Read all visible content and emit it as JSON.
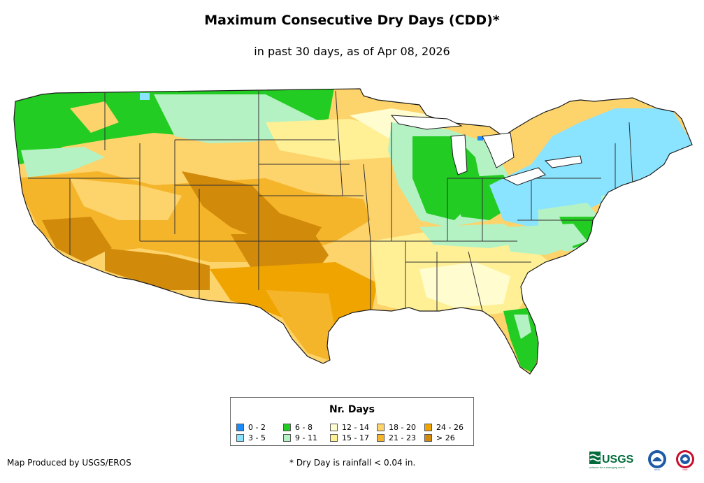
{
  "title": "Maximum Consecutive Dry Days (CDD)*",
  "subtitle": "in past 30 days, as of Apr 08, 2026",
  "legend": {
    "title": "Nr. Days",
    "items": [
      {
        "label": "0 - 2",
        "color": "#1a8cff"
      },
      {
        "label": "3 - 5",
        "color": "#8ae4ff"
      },
      {
        "label": "6 - 8",
        "color": "#22cc22"
      },
      {
        "label": "9 - 11",
        "color": "#b4f2c4"
      },
      {
        "label": "12 - 14",
        "color": "#fffccf"
      },
      {
        "label": "15 - 17",
        "color": "#fff096"
      },
      {
        "label": "18 - 20",
        "color": "#fdd36b"
      },
      {
        "label": "21 - 23",
        "color": "#f5b52a"
      },
      {
        "label": "24 - 26",
        "color": "#f0a400"
      },
      {
        "label": "> 26",
        "color": "#d28a0a"
      }
    ]
  },
  "credit": "Map Produced by USGS/EROS",
  "footnote": "* Dry Day is rainfall < 0.04 in.",
  "logos": {
    "usgs_text": "USGS",
    "usgs_tagline": "science for a changing world",
    "noaa_text": "NOAA",
    "nws_text": "NWS"
  },
  "colors": {
    "border": "#333333",
    "land_outline": "#1a1a1a"
  }
}
